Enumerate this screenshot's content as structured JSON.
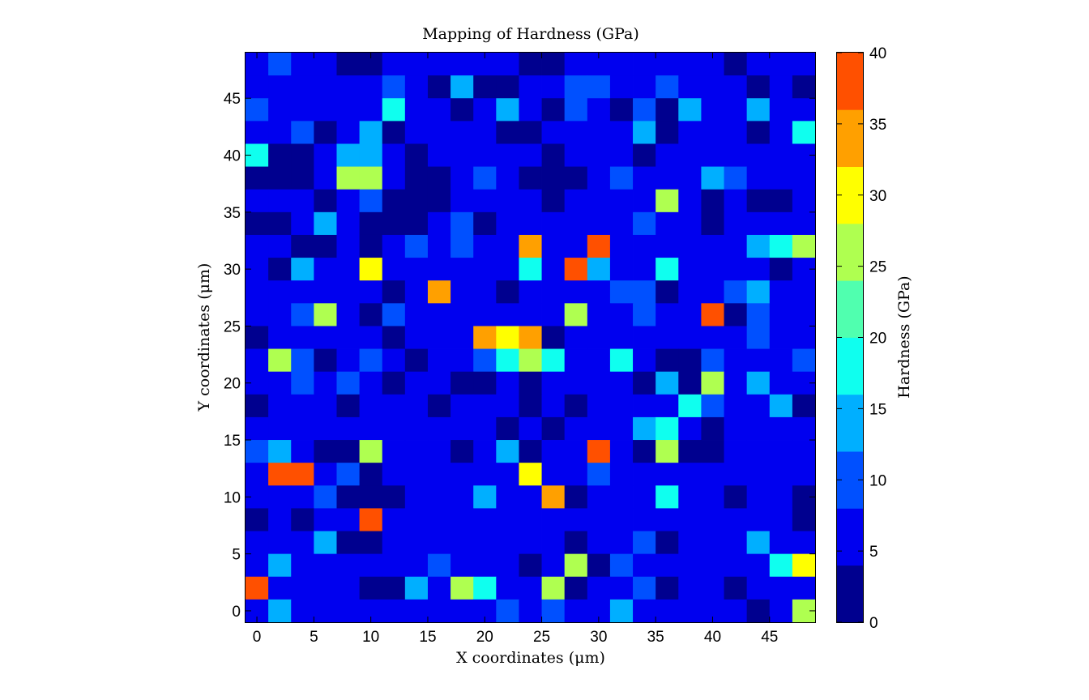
{
  "chart_data": {
    "type": "heatmap",
    "title": "Mapping of Hardness (GPa)",
    "xlabel": "X coordinates (μm)",
    "ylabel": "Y coordinates (μm)",
    "colorbar_label": "Hardness (GPa)",
    "grid": false,
    "x": [
      0,
      2,
      4,
      6,
      8,
      10,
      12,
      14,
      16,
      18,
      20,
      22,
      24,
      26,
      28,
      30,
      32,
      34,
      36,
      38,
      40,
      42,
      44,
      46,
      48
    ],
    "y": [
      0,
      2,
      4,
      6,
      8,
      10,
      12,
      14,
      16,
      18,
      20,
      22,
      24,
      26,
      28,
      30,
      32,
      34,
      36,
      38,
      40,
      42,
      44,
      46,
      48
    ],
    "xlim": [
      -1,
      49
    ],
    "ylim": [
      -1,
      49
    ],
    "clim": [
      0,
      40
    ],
    "x_ticks": [
      0,
      5,
      10,
      15,
      20,
      25,
      30,
      35,
      40,
      45
    ],
    "y_ticks": [
      0,
      5,
      10,
      15,
      20,
      25,
      30,
      35,
      40,
      45
    ],
    "colorbar_ticks": [
      0,
      5,
      10,
      15,
      20,
      25,
      30,
      35,
      40
    ],
    "colormap": "jet",
    "colormap_levels": [
      "#00008f",
      "#0000ef",
      "#0050ff",
      "#00afff",
      "#0fffef",
      "#50ffaf",
      "#afff50",
      "#ffff00",
      "#ffa000",
      "#ff5000"
    ],
    "values_row_order": "top row first (y = 48 down to y = 0)",
    "values": [
      [
        7,
        11,
        7,
        7,
        3,
        3,
        7,
        7,
        7,
        7,
        7,
        7,
        3,
        3,
        7,
        7,
        7,
        7,
        7,
        7,
        7,
        3,
        7,
        7,
        7
      ],
      [
        7,
        7,
        7,
        7,
        7,
        7,
        11,
        7,
        3,
        14,
        3,
        3,
        7,
        7,
        11,
        11,
        7,
        7,
        11,
        7,
        7,
        7,
        3,
        7,
        3
      ],
      [
        11,
        7,
        7,
        7,
        7,
        7,
        17,
        7,
        7,
        3,
        7,
        14,
        7,
        3,
        11,
        7,
        3,
        11,
        3,
        14,
        7,
        7,
        14,
        7,
        7
      ],
      [
        7,
        7,
        11,
        3,
        7,
        14,
        3,
        7,
        7,
        7,
        7,
        3,
        3,
        7,
        7,
        7,
        7,
        14,
        3,
        7,
        7,
        7,
        3,
        7,
        17
      ],
      [
        17,
        3,
        3,
        7,
        14,
        14,
        7,
        3,
        7,
        7,
        7,
        7,
        7,
        3,
        7,
        7,
        7,
        3,
        7,
        7,
        7,
        7,
        7,
        7,
        7
      ],
      [
        3,
        3,
        3,
        7,
        27,
        24,
        7,
        3,
        3,
        7,
        11,
        7,
        3,
        3,
        3,
        7,
        11,
        7,
        7,
        7,
        14,
        11,
        7,
        7,
        7
      ],
      [
        7,
        7,
        7,
        3,
        7,
        11,
        3,
        3,
        3,
        7,
        7,
        7,
        7,
        3,
        7,
        7,
        7,
        7,
        27,
        7,
        3,
        7,
        3,
        3,
        7
      ],
      [
        3,
        3,
        7,
        14,
        7,
        3,
        3,
        3,
        7,
        11,
        3,
        7,
        7,
        7,
        7,
        7,
        7,
        11,
        7,
        7,
        3,
        7,
        7,
        7,
        7
      ],
      [
        7,
        7,
        3,
        3,
        7,
        3,
        7,
        11,
        7,
        11,
        7,
        7,
        34,
        7,
        7,
        38,
        7,
        7,
        7,
        7,
        7,
        7,
        14,
        17,
        27
      ],
      [
        7,
        3,
        14,
        7,
        7,
        31,
        7,
        7,
        7,
        7,
        7,
        7,
        17,
        7,
        38,
        14,
        7,
        7,
        17,
        7,
        7,
        7,
        7,
        3,
        7
      ],
      [
        7,
        7,
        7,
        7,
        7,
        7,
        3,
        7,
        34,
        7,
        7,
        3,
        7,
        7,
        7,
        7,
        11,
        11,
        3,
        7,
        7,
        11,
        14,
        7,
        7
      ],
      [
        7,
        7,
        11,
        24,
        7,
        3,
        11,
        7,
        7,
        7,
        7,
        7,
        7,
        7,
        24,
        7,
        7,
        11,
        7,
        7,
        38,
        3,
        11,
        7,
        7
      ],
      [
        3,
        7,
        7,
        7,
        7,
        7,
        3,
        7,
        7,
        7,
        34,
        31,
        34,
        3,
        7,
        7,
        7,
        7,
        7,
        7,
        7,
        7,
        11,
        7,
        7
      ],
      [
        7,
        24,
        11,
        3,
        7,
        11,
        7,
        3,
        7,
        7,
        11,
        17,
        27,
        17,
        7,
        7,
        17,
        7,
        3,
        3,
        11,
        7,
        7,
        7,
        11
      ],
      [
        7,
        7,
        11,
        7,
        11,
        7,
        3,
        7,
        7,
        3,
        3,
        7,
        3,
        7,
        7,
        7,
        7,
        3,
        14,
        3,
        24,
        7,
        14,
        7,
        7
      ],
      [
        3,
        7,
        7,
        7,
        3,
        7,
        7,
        7,
        3,
        7,
        7,
        7,
        3,
        7,
        3,
        7,
        7,
        7,
        7,
        17,
        11,
        7,
        7,
        14,
        3
      ],
      [
        7,
        7,
        7,
        7,
        7,
        7,
        7,
        7,
        7,
        7,
        7,
        3,
        7,
        3,
        7,
        7,
        7,
        14,
        17,
        7,
        3,
        7,
        7,
        7,
        7
      ],
      [
        11,
        14,
        7,
        3,
        3,
        24,
        7,
        7,
        7,
        3,
        7,
        14,
        3,
        7,
        7,
        38,
        7,
        3,
        24,
        3,
        3,
        7,
        7,
        7,
        7
      ],
      [
        7,
        38,
        38,
        7,
        11,
        3,
        7,
        7,
        7,
        7,
        7,
        7,
        31,
        7,
        7,
        11,
        7,
        7,
        7,
        7,
        7,
        7,
        7,
        7,
        7
      ],
      [
        7,
        7,
        7,
        11,
        3,
        3,
        3,
        7,
        7,
        7,
        14,
        7,
        7,
        34,
        3,
        7,
        7,
        7,
        17,
        7,
        7,
        3,
        7,
        7,
        3
      ],
      [
        3,
        7,
        3,
        7,
        7,
        38,
        7,
        7,
        7,
        7,
        7,
        7,
        7,
        7,
        7,
        7,
        7,
        7,
        7,
        7,
        7,
        7,
        7,
        7,
        3
      ],
      [
        7,
        7,
        7,
        14,
        3,
        3,
        7,
        7,
        7,
        7,
        7,
        7,
        7,
        7,
        3,
        7,
        7,
        11,
        3,
        7,
        7,
        7,
        14,
        7,
        7
      ],
      [
        7,
        14,
        7,
        7,
        7,
        7,
        7,
        7,
        11,
        7,
        7,
        7,
        3,
        7,
        24,
        3,
        11,
        7,
        7,
        7,
        7,
        7,
        7,
        17,
        31
      ],
      [
        38,
        7,
        7,
        7,
        7,
        3,
        3,
        14,
        7,
        24,
        17,
        7,
        7,
        24,
        3,
        7,
        7,
        11,
        3,
        7,
        7,
        3,
        7,
        7,
        7
      ],
      [
        7,
        14,
        7,
        7,
        7,
        7,
        7,
        7,
        7,
        7,
        7,
        11,
        7,
        11,
        7,
        7,
        14,
        7,
        7,
        7,
        7,
        7,
        3,
        7,
        24
      ]
    ]
  }
}
